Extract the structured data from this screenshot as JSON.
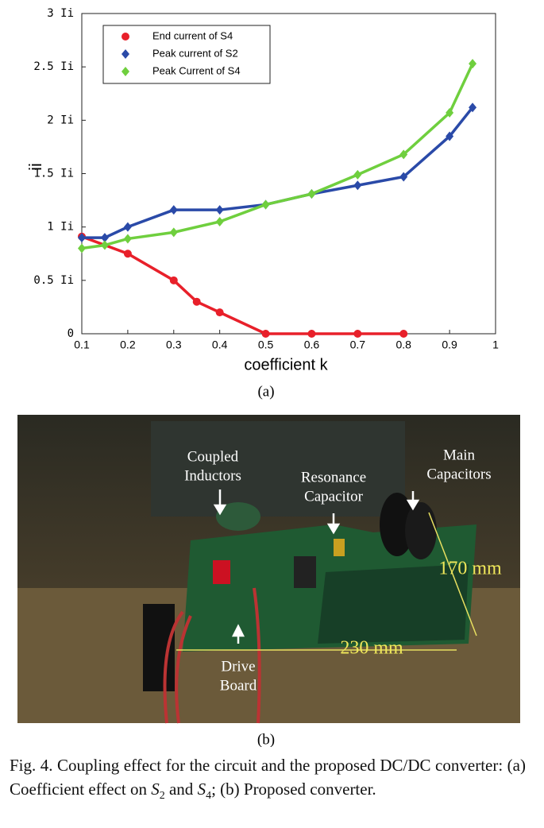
{
  "chart_data": {
    "type": "line",
    "xlabel": "coefficient k",
    "ylabel": "ii",
    "xlim": [
      0.1,
      1
    ],
    "xticks": [
      0.1,
      0.2,
      0.3,
      0.4,
      0.5,
      0.6,
      0.7,
      0.8,
      0.9,
      1
    ],
    "ylim": [
      0,
      3
    ],
    "yticks": [
      0,
      {
        "value": 0.5,
        "label": "0.5 Ii"
      },
      {
        "value": 1,
        "label": "1 Ii"
      },
      {
        "value": 1.5,
        "label": "1.5 Ii"
      },
      {
        "value": 2,
        "label": "2 Ii"
      },
      {
        "value": 2.5,
        "label": "2.5 Ii"
      },
      {
        "value": 3,
        "label": "3 Ii"
      }
    ],
    "legend": "upper left",
    "series": [
      {
        "name": "End current of S4",
        "color": "#e8202a",
        "marker": "circle",
        "x": [
          0.1,
          0.2,
          0.3,
          0.35,
          0.4,
          0.5,
          0.6,
          0.7,
          0.8
        ],
        "values": [
          0.91,
          0.75,
          0.5,
          0.3,
          0.2,
          0,
          0,
          0,
          0
        ]
      },
      {
        "name": "Peak current of S2",
        "color": "#2a4aa8",
        "marker": "diamond",
        "x": [
          0.1,
          0.15,
          0.2,
          0.3,
          0.4,
          0.5,
          0.6,
          0.7,
          0.8,
          0.9,
          0.95
        ],
        "values": [
          0.9,
          0.9,
          1.0,
          1.16,
          1.16,
          1.21,
          1.31,
          1.39,
          1.47,
          1.85,
          2.12
        ]
      },
      {
        "name": "Peak Current of S4",
        "color": "#6fcf3e",
        "marker": "diamond",
        "x": [
          0.1,
          0.15,
          0.2,
          0.3,
          0.4,
          0.5,
          0.6,
          0.7,
          0.8,
          0.9,
          0.95
        ],
        "values": [
          0.8,
          0.83,
          0.89,
          0.95,
          1.05,
          1.21,
          1.31,
          1.49,
          1.68,
          2.07,
          2.53
        ]
      }
    ]
  },
  "figure": {
    "label_a": "(a)",
    "label_b": "(b)",
    "photo_labels": [
      "Coupled",
      "Inductors",
      "Resonance",
      "Capacitor",
      "Main",
      "Capacitors",
      "170 mm",
      "230 mm",
      "Drive",
      "Board"
    ],
    "caption": [
      "Fig. 4. Coupling effect for the circuit and the proposed DC/DC converter: (a) Coefficient effect on ",
      "S",
      "2",
      " and ",
      "S",
      "4",
      "; (b) Proposed converter."
    ]
  }
}
